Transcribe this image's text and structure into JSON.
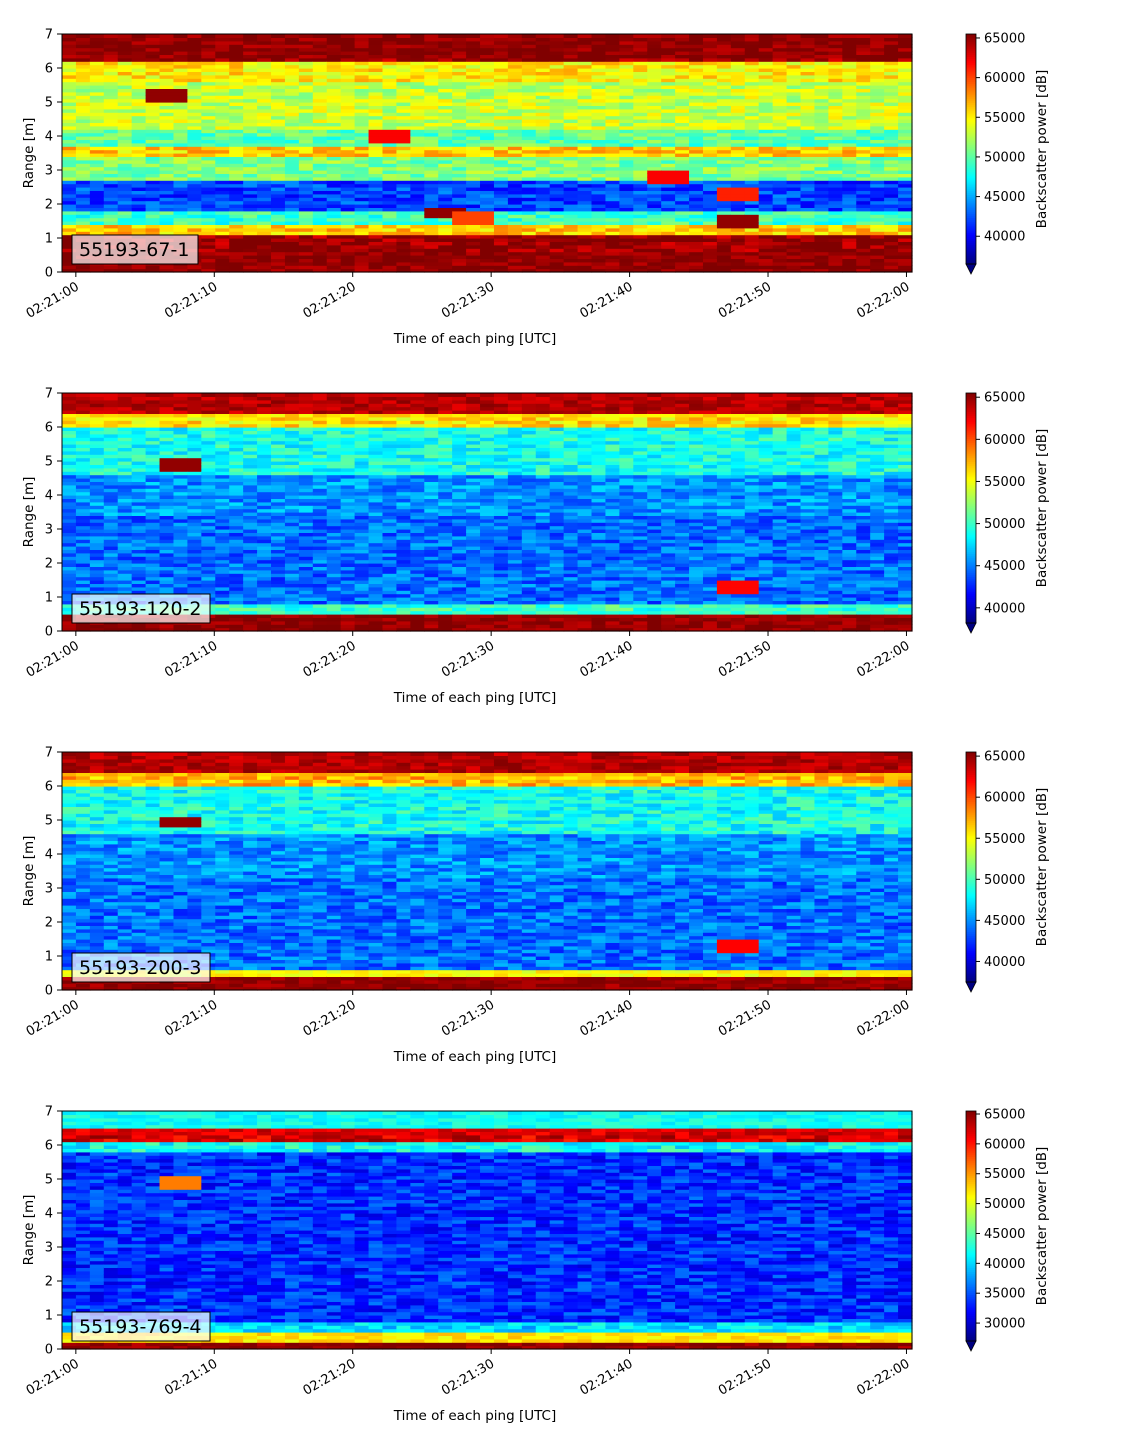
{
  "chart_data": [
    {
      "type": "heatmap",
      "label": "55193-67-1",
      "xlabel": "Time of each ping [UTC]",
      "ylabel": "Range [m]",
      "x_ticks": [
        "02:21:00",
        "02:21:10",
        "02:21:20",
        "02:21:30",
        "02:21:40",
        "02:21:50",
        "02:22:00"
      ],
      "xlim_seconds_after_02_21_00": [
        -1,
        60.4
      ],
      "y_ticks": [
        0,
        1,
        2,
        3,
        4,
        5,
        6,
        7
      ],
      "ylim": [
        0,
        7
      ],
      "colormap": "jet",
      "colorbar": {
        "label": "Backscatter power [dB]",
        "vmin": 36500,
        "vmax": 65500,
        "ticks": [
          40000,
          45000,
          50000,
          55000,
          60000,
          65000
        ],
        "extend": "min"
      },
      "bands": [
        {
          "range_m": [
            0.25,
            1.15
          ],
          "value": 65000
        },
        {
          "range_m": [
            1.15,
            1.4
          ],
          "value": 56000
        },
        {
          "range_m": [
            1.4,
            1.8
          ],
          "value": 49000
        },
        {
          "range_m": [
            1.8,
            2.7
          ],
          "value": 42000
        },
        {
          "range_m": [
            2.7,
            3.4
          ],
          "value": 51000
        },
        {
          "range_m": [
            3.4,
            3.7
          ],
          "value": 56000
        },
        {
          "range_m": [
            3.7,
            4.2
          ],
          "value": 50000
        },
        {
          "range_m": [
            4.2,
            5.6
          ],
          "value": 53000
        },
        {
          "range_m": [
            5.6,
            6.2
          ],
          "value": 55000
        },
        {
          "range_m": [
            6.2,
            7.0
          ],
          "value": 65000
        }
      ],
      "spots": [
        {
          "time_s": 6.5,
          "range_m": 5.2,
          "value": 65000
        },
        {
          "time_s": 26.5,
          "range_m": 1.75,
          "value": 65000
        },
        {
          "time_s": 28.5,
          "range_m": 1.6,
          "value": 60000
        },
        {
          "time_s": 22.5,
          "range_m": 4.0,
          "value": 62000
        },
        {
          "time_s": 43,
          "range_m": 2.8,
          "value": 62000
        },
        {
          "time_s": 48,
          "range_m": 2.3,
          "value": 61000
        },
        {
          "time_s": 47.5,
          "range_m": 1.5,
          "value": 65000
        }
      ]
    },
    {
      "type": "heatmap",
      "label": "55193-120-2",
      "xlabel": "Time of each ping [UTC]",
      "ylabel": "Range [m]",
      "x_ticks": [
        "02:21:00",
        "02:21:10",
        "02:21:20",
        "02:21:30",
        "02:21:40",
        "02:21:50",
        "02:22:00"
      ],
      "xlim_seconds_after_02_21_00": [
        -1,
        60.4
      ],
      "y_ticks": [
        0,
        1,
        2,
        3,
        4,
        5,
        6,
        7
      ],
      "ylim": [
        0,
        7
      ],
      "colormap": "jet",
      "colorbar": {
        "label": "Backscatter power [dB]",
        "vmin": 38200,
        "vmax": 65500,
        "ticks": [
          40000,
          45000,
          50000,
          55000,
          60000,
          65000
        ],
        "extend": "min"
      },
      "bands": [
        {
          "range_m": [
            0.1,
            0.55
          ],
          "value": 65000
        },
        {
          "range_m": [
            0.55,
            0.8
          ],
          "value": 50000
        },
        {
          "range_m": [
            0.8,
            3.4
          ],
          "value": 44500
        },
        {
          "range_m": [
            3.4,
            4.6
          ],
          "value": 45500
        },
        {
          "range_m": [
            4.6,
            6.0
          ],
          "value": 49000
        },
        {
          "range_m": [
            6.0,
            6.4
          ],
          "value": 56000
        },
        {
          "range_m": [
            6.4,
            7.0
          ],
          "value": 64000
        }
      ],
      "spots": [
        {
          "time_s": 7.5,
          "range_m": 4.9,
          "value": 65000
        },
        {
          "time_s": 48,
          "range_m": 1.3,
          "value": 62000
        }
      ]
    },
    {
      "type": "heatmap",
      "label": "55193-200-3",
      "xlabel": "Time of each ping [UTC]",
      "ylabel": "Range [m]",
      "x_ticks": [
        "02:21:00",
        "02:21:10",
        "02:21:20",
        "02:21:30",
        "02:21:40",
        "02:21:50",
        "02:22:00"
      ],
      "xlim_seconds_after_02_21_00": [
        -1,
        60.4
      ],
      "y_ticks": [
        0,
        1,
        2,
        3,
        4,
        5,
        6,
        7
      ],
      "ylim": [
        0,
        7
      ],
      "colormap": "jet",
      "colorbar": {
        "label": "Backscatter power [dB]",
        "vmin": 37500,
        "vmax": 65500,
        "ticks": [
          40000,
          45000,
          50000,
          55000,
          60000,
          65000
        ],
        "extend": "min"
      },
      "bands": [
        {
          "range_m": [
            0.1,
            0.4
          ],
          "value": 65000
        },
        {
          "range_m": [
            0.4,
            0.65
          ],
          "value": 55000
        },
        {
          "range_m": [
            0.65,
            3.3
          ],
          "value": 44000
        },
        {
          "range_m": [
            3.3,
            4.6
          ],
          "value": 45000
        },
        {
          "range_m": [
            4.6,
            6.0
          ],
          "value": 48500
        },
        {
          "range_m": [
            6.0,
            6.4
          ],
          "value": 57000
        },
        {
          "range_m": [
            6.4,
            7.0
          ],
          "value": 64000
        }
      ],
      "spots": [
        {
          "time_s": 7.5,
          "range_m": 4.95,
          "value": 65000
        },
        {
          "time_s": 48,
          "range_m": 1.3,
          "value": 62000
        }
      ]
    },
    {
      "type": "heatmap",
      "label": "55193-769-4",
      "xlabel": "Time of each ping [UTC]",
      "ylabel": "Range [m]",
      "x_ticks": [
        "02:21:00",
        "02:21:10",
        "02:21:20",
        "02:21:30",
        "02:21:40",
        "02:21:50",
        "02:22:00"
      ],
      "xlim_seconds_after_02_21_00": [
        -1,
        60.4
      ],
      "y_ticks": [
        0,
        1,
        2,
        3,
        4,
        5,
        6,
        7
      ],
      "ylim": [
        0,
        7
      ],
      "colormap": "jet",
      "colorbar": {
        "label": "Backscatter power [dB]",
        "vmin": 27000,
        "vmax": 65500,
        "ticks": [
          30000,
          35000,
          40000,
          45000,
          50000,
          55000,
          60000,
          65000
        ],
        "extend": "min"
      },
      "bands": [
        {
          "range_m": [
            0.1,
            0.25
          ],
          "value": 65000
        },
        {
          "range_m": [
            0.25,
            0.45
          ],
          "value": 52000
        },
        {
          "range_m": [
            0.45,
            0.8
          ],
          "value": 40000
        },
        {
          "range_m": [
            0.8,
            5.8
          ],
          "value": 33500
        },
        {
          "range_m": [
            5.8,
            6.15
          ],
          "value": 42000
        },
        {
          "range_m": [
            6.15,
            6.45
          ],
          "value": 62000
        },
        {
          "range_m": [
            6.45,
            7.0
          ],
          "value": 42000
        }
      ],
      "spots": [
        {
          "time_s": 7.5,
          "range_m": 4.9,
          "value": 56000
        }
      ]
    }
  ]
}
